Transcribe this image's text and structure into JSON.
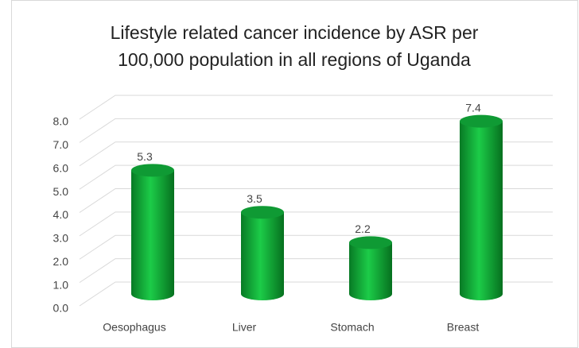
{
  "chart_data": {
    "type": "bar3d",
    "title": "Lifestyle related cancer incidence by ASR per 100,000 population in all regions of Uganda",
    "categories": [
      "Oesophagus",
      "Liver",
      "Stomach",
      "Breast"
    ],
    "values": [
      5.3,
      3.5,
      2.2,
      7.4
    ],
    "color": "#13b03c",
    "ylim": [
      0,
      8
    ],
    "yticks": [
      {
        "value": 0,
        "label": "0.0"
      },
      {
        "value": 1,
        "label": "1.0"
      },
      {
        "value": 2,
        "label": "2.0"
      },
      {
        "value": 3,
        "label": "3.0"
      },
      {
        "value": 4,
        "label": "4.0"
      },
      {
        "value": 5,
        "label": "5.0"
      },
      {
        "value": 6,
        "label": "6.0"
      },
      {
        "value": 7,
        "label": "7.0"
      },
      {
        "value": 8,
        "label": "8.0"
      }
    ],
    "grid": true
  }
}
